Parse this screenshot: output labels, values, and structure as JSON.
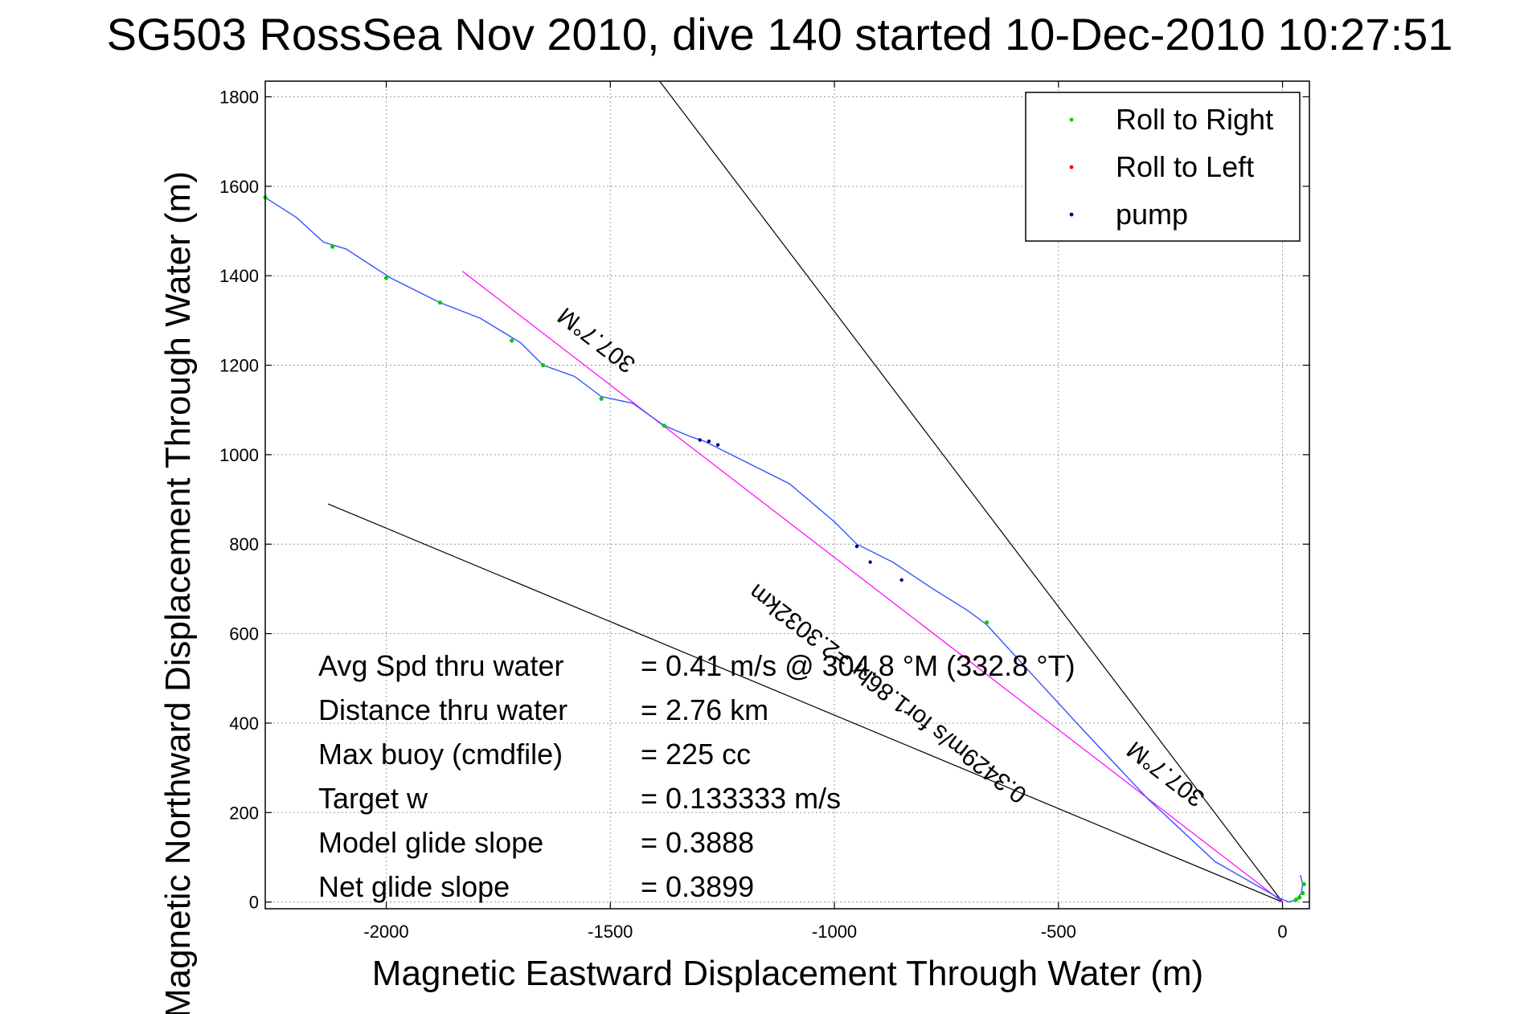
{
  "chart_data": {
    "type": "line",
    "title": "SG503 RossSea Nov 2010, dive 140 started 10-Dec-2010 10:27:51",
    "xlabel": "Magnetic Eastward Displacement Through Water (m)",
    "ylabel": "Magnetic Northward Displacement Through Water (m)",
    "xlim": [
      -2270,
      60
    ],
    "ylim": [
      -15,
      1835
    ],
    "x_ticks": [
      -2000,
      -1500,
      -1000,
      -500,
      0
    ],
    "y_ticks": [
      0,
      200,
      400,
      600,
      800,
      1000,
      1200,
      1400,
      1600,
      1800
    ],
    "x_tick_labels": [
      "-2000",
      "-1500",
      "-1000",
      "-500",
      "0"
    ],
    "y_tick_labels": [
      "0",
      "200",
      "400",
      "600",
      "800",
      "1000",
      "1200",
      "1400",
      "1600",
      "1800"
    ],
    "grid": true,
    "legend_position": "top-right",
    "legend": [
      {
        "label": "Roll to Right",
        "color": "#00cc00"
      },
      {
        "label": "Roll to Left",
        "color": "#ff0000"
      },
      {
        "label": "pump",
        "color": "#000080"
      }
    ],
    "track": {
      "color": "#3355ff",
      "x": [
        40,
        45,
        42,
        30,
        15,
        -10,
        -150,
        -300,
        -450,
        -560,
        -660,
        -700,
        -780,
        -870,
        -950,
        -1000,
        -1100,
        -1200,
        -1290,
        -1320,
        -1380,
        -1450,
        -1520,
        -1580,
        -1650,
        -1700,
        -1790,
        -1880,
        -1990,
        -2090,
        -2140,
        -2200,
        -2270
      ],
      "y": [
        60,
        40,
        20,
        5,
        0,
        10,
        90,
        230,
        390,
        510,
        620,
        650,
        700,
        760,
        800,
        850,
        935,
        985,
        1030,
        1040,
        1065,
        1115,
        1130,
        1175,
        1200,
        1250,
        1305,
        1340,
        1395,
        1460,
        1475,
        1530,
        1575
      ]
    },
    "roll_right_points": {
      "x": [
        48,
        45,
        38,
        30,
        -660,
        -1380,
        -1520,
        -1650,
        -1720,
        -1880,
        -2000,
        -2120,
        -2270
      ],
      "y": [
        40,
        20,
        10,
        5,
        625,
        1065,
        1125,
        1200,
        1255,
        1340,
        1395,
        1465,
        1575
      ]
    },
    "pump_points": {
      "x": [
        -1300,
        -1280,
        -1260,
        -950,
        -920,
        -850
      ],
      "y": [
        1033,
        1030,
        1022,
        795,
        760,
        720
      ]
    },
    "heading_lines": [
      {
        "color": "#000000",
        "x": [
          -1390,
          0
        ],
        "y": [
          1835,
          0
        ]
      },
      {
        "color": "#000000",
        "x": [
          -2130,
          0
        ],
        "y": [
          890,
          0
        ]
      },
      {
        "color": "#ff00ff",
        "x": [
          -1830,
          0
        ],
        "y": [
          1410,
          0
        ]
      }
    ],
    "heading_labels": [
      {
        "text": "307.7°M",
        "x": -1520,
        "y": 1270,
        "angle": 37.6
      },
      {
        "text": "307.7°M",
        "x": -250,
        "y": 300,
        "angle": 37.6
      },
      {
        "text": "0.3429m/s for1.86hr =2.3032km",
        "x": -870,
        "y": 480,
        "angle": 37.6
      }
    ],
    "stats": [
      {
        "label": "Avg Spd thru water",
        "value": "=  0.41 m/s @ 304.8 °M (332.8 °T)"
      },
      {
        "label": "Distance thru water",
        "value": "=  2.76 km"
      },
      {
        "label": "Max buoy (cmdfile)",
        "value": "= 225 cc"
      },
      {
        "label": "Target w",
        "value": "= 0.133333 m/s"
      },
      {
        "label": "Model glide slope",
        "value": "= 0.3888"
      },
      {
        "label": "Net glide slope",
        "value": "= 0.3899"
      }
    ]
  }
}
